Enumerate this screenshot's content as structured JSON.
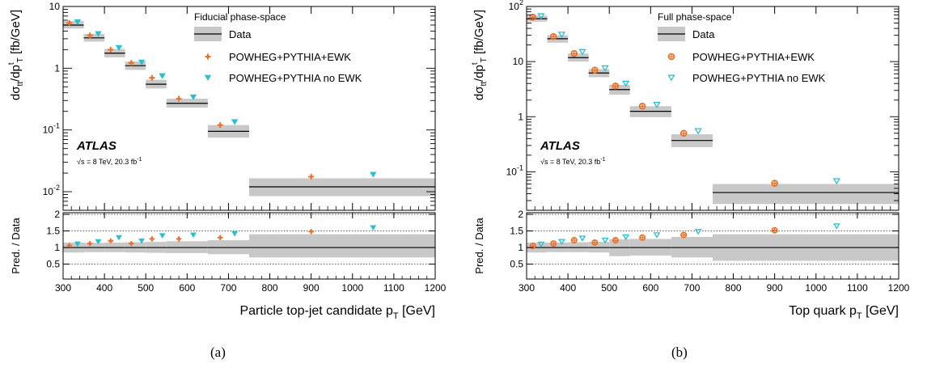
{
  "colors": {
    "band": "#c8c8c8",
    "ewk": "#f26b21",
    "noewk": "#27c1cf",
    "data": "#000000"
  },
  "chart_data": [
    {
      "type": "scatter",
      "panel_label": "(a)",
      "phase_space": "Fiducial phase-space",
      "experiment": "ATLAS",
      "energy_text": "√s = 8 TeV, 20.3 fb",
      "energy_sup": "-1",
      "xlabel": "Particle top-jet candidate p",
      "xlabel_sub": "T",
      "xlabel_unit": "[GeV]",
      "ylabel": "dσ",
      "ylabel_sub1": "tt",
      "ylabel_mid": "/dp",
      "ylabel_sup": "t",
      "ylabel_sub2": "T",
      "ylabel_unit": "[fb/GeV]",
      "ratio_ylabel": "Pred. / Data",
      "xlim": [
        300,
        1200
      ],
      "ylim": [
        0.005,
        10
      ],
      "yscale": "log",
      "ratio_ylim": [
        0.05,
        2.05
      ],
      "xticks": [
        "300",
        "400",
        "500",
        "600",
        "700",
        "800",
        "900",
        "1000",
        "1100",
        "1200"
      ],
      "yticks": [
        {
          "v": 0.01,
          "b": "10",
          "s": "-2"
        },
        {
          "v": 0.1,
          "b": "10",
          "s": "-1"
        },
        {
          "v": 1,
          "b": "1",
          "s": ""
        },
        {
          "v": 10,
          "b": "10",
          "s": ""
        }
      ],
      "ratio_yticks": [
        "0.5",
        "1",
        "1.5",
        "2"
      ],
      "legend": {
        "data": "Data",
        "ewk": "POWHEG+PYTHIA+EWK",
        "noewk": "POWHEG+PYTHIA no EWK",
        "ewk_marker": "plus",
        "noewk_marker": "tri-filled"
      },
      "bins": [
        {
          "lo": 300,
          "hi": 350,
          "data": 5.0,
          "band": [
            4.4,
            5.8
          ],
          "ewk": 5.4,
          "noewk": 5.6,
          "ratio_band": [
            0.85,
            1.15
          ],
          "r_ewk": 1.06,
          "r_noewk": 1.11
        },
        {
          "lo": 350,
          "hi": 400,
          "data": 3.1,
          "band": [
            2.7,
            3.6
          ],
          "ewk": 3.4,
          "noewk": 3.6,
          "ratio_band": [
            0.86,
            1.14
          ],
          "r_ewk": 1.12,
          "r_noewk": 1.18
        },
        {
          "lo": 400,
          "hi": 450,
          "data": 1.75,
          "band": [
            1.5,
            2.05
          ],
          "ewk": 2.0,
          "noewk": 2.15,
          "ratio_band": [
            0.86,
            1.15
          ],
          "r_ewk": 1.2,
          "r_noewk": 1.3
        },
        {
          "lo": 450,
          "hi": 500,
          "data": 1.1,
          "band": [
            0.94,
            1.28
          ],
          "ewk": 1.22,
          "noewk": 1.25,
          "ratio_band": [
            0.85,
            1.16
          ],
          "r_ewk": 1.12,
          "r_noewk": 1.2
        },
        {
          "lo": 500,
          "hi": 550,
          "data": 0.55,
          "band": [
            0.47,
            0.65
          ],
          "ewk": 0.7,
          "noewk": 0.75,
          "ratio_band": [
            0.84,
            1.17
          ],
          "r_ewk": 1.26,
          "r_noewk": 1.36
        },
        {
          "lo": 550,
          "hi": 650,
          "data": 0.27,
          "band": [
            0.23,
            0.32
          ],
          "ewk": 0.32,
          "noewk": 0.34,
          "ratio_band": [
            0.83,
            1.19
          ],
          "r_ewk": 1.26,
          "r_noewk": 1.38
        },
        {
          "lo": 650,
          "hi": 750,
          "data": 0.095,
          "band": [
            0.075,
            0.12
          ],
          "ewk": 0.12,
          "noewk": 0.135,
          "ratio_band": [
            0.8,
            1.22
          ],
          "r_ewk": 1.3,
          "r_noewk": 1.42
        },
        {
          "lo": 750,
          "hi": 1200,
          "data": 0.012,
          "band": [
            0.0085,
            0.0165
          ],
          "ewk": 0.0175,
          "noewk": 0.019,
          "ratio_band": [
            0.7,
            1.4
          ],
          "r_ewk": 1.48,
          "r_noewk": 1.6
        }
      ],
      "x_markers": {
        "ewk": [
          315,
          365,
          415,
          465,
          515,
          580,
          680,
          900
        ],
        "noewk": [
          335,
          385,
          435,
          490,
          540,
          615,
          715,
          1050
        ]
      }
    },
    {
      "type": "scatter",
      "panel_label": "(b)",
      "phase_space": "Full phase-space",
      "experiment": "ATLAS",
      "energy_text": "√s = 8 TeV, 20.3 fb",
      "energy_sup": "-1",
      "xlabel": "Top quark p",
      "xlabel_sub": "T",
      "xlabel_unit": "[GeV]",
      "ylabel": "dσ",
      "ylabel_sub1": "tt",
      "ylabel_mid": "/dp",
      "ylabel_sup": "t",
      "ylabel_sub2": "T",
      "ylabel_unit": "[fb/GeV]",
      "ratio_ylabel": "Pred. / Data",
      "xlim": [
        300,
        1200
      ],
      "ylim": [
        0.02,
        100
      ],
      "yscale": "log",
      "ratio_ylim": [
        0.05,
        2.05
      ],
      "xticks": [
        "300",
        "400",
        "500",
        "600",
        "700",
        "800",
        "900",
        "1000",
        "1100",
        "1200"
      ],
      "yticks": [
        {
          "v": 0.1,
          "b": "10",
          "s": "-1"
        },
        {
          "v": 1,
          "b": "1",
          "s": ""
        },
        {
          "v": 10,
          "b": "10",
          "s": ""
        },
        {
          "v": 100,
          "b": "10",
          "s": "2"
        }
      ],
      "ratio_yticks": [
        "0.5",
        "1",
        "1.5",
        "2"
      ],
      "legend": {
        "data": "Data",
        "ewk": "POWHEG+PYTHIA+EWK",
        "noewk": "POWHEG+PYTHIA no EWK",
        "ewk_marker": "circle-plus",
        "noewk_marker": "tri-open"
      },
      "bins": [
        {
          "lo": 300,
          "hi": 350,
          "data": 60,
          "band": [
            53,
            68
          ],
          "ewk": 64,
          "noewk": 67,
          "ratio_band": [
            0.85,
            1.15
          ],
          "r_ewk": 1.05,
          "r_noewk": 1.1
        },
        {
          "lo": 350,
          "hi": 400,
          "data": 26,
          "band": [
            22,
            30
          ],
          "ewk": 28.5,
          "noewk": 31,
          "ratio_band": [
            0.86,
            1.15
          ],
          "r_ewk": 1.12,
          "r_noewk": 1.18
        },
        {
          "lo": 400,
          "hi": 450,
          "data": 11.8,
          "band": [
            10,
            14
          ],
          "ewk": 14,
          "noewk": 15,
          "ratio_band": [
            0.86,
            1.16
          ],
          "r_ewk": 1.22,
          "r_noewk": 1.28
        },
        {
          "lo": 450,
          "hi": 500,
          "data": 6.2,
          "band": [
            5.2,
            7.3
          ],
          "ewk": 7.0,
          "noewk": 7.6,
          "ratio_band": [
            0.85,
            1.17
          ],
          "r_ewk": 1.15,
          "r_noewk": 1.22
        },
        {
          "lo": 500,
          "hi": 550,
          "data": 3.1,
          "band": [
            2.5,
            3.8
          ],
          "ewk": 3.6,
          "noewk": 4.0,
          "ratio_band": [
            0.74,
            1.25
          ],
          "r_ewk": 1.22,
          "r_noewk": 1.32
        },
        {
          "lo": 550,
          "hi": 650,
          "data": 1.25,
          "band": [
            0.98,
            1.55
          ],
          "ewk": 1.55,
          "noewk": 1.65,
          "ratio_band": [
            0.76,
            1.26
          ],
          "r_ewk": 1.3,
          "r_noewk": 1.38
        },
        {
          "lo": 650,
          "hi": 750,
          "data": 0.37,
          "band": [
            0.28,
            0.48
          ],
          "ewk": 0.5,
          "noewk": 0.55,
          "ratio_band": [
            0.7,
            1.32
          ],
          "r_ewk": 1.38,
          "r_noewk": 1.48
        },
        {
          "lo": 750,
          "hi": 1200,
          "data": 0.042,
          "band": [
            0.026,
            0.06
          ],
          "ewk": 0.062,
          "noewk": 0.068,
          "ratio_band": [
            0.6,
            1.4
          ],
          "r_ewk": 1.52,
          "r_noewk": 1.65
        }
      ],
      "x_markers": {
        "ewk": [
          315,
          365,
          415,
          465,
          515,
          580,
          680,
          900
        ],
        "noewk": [
          335,
          385,
          435,
          490,
          540,
          615,
          715,
          1050
        ]
      }
    }
  ]
}
